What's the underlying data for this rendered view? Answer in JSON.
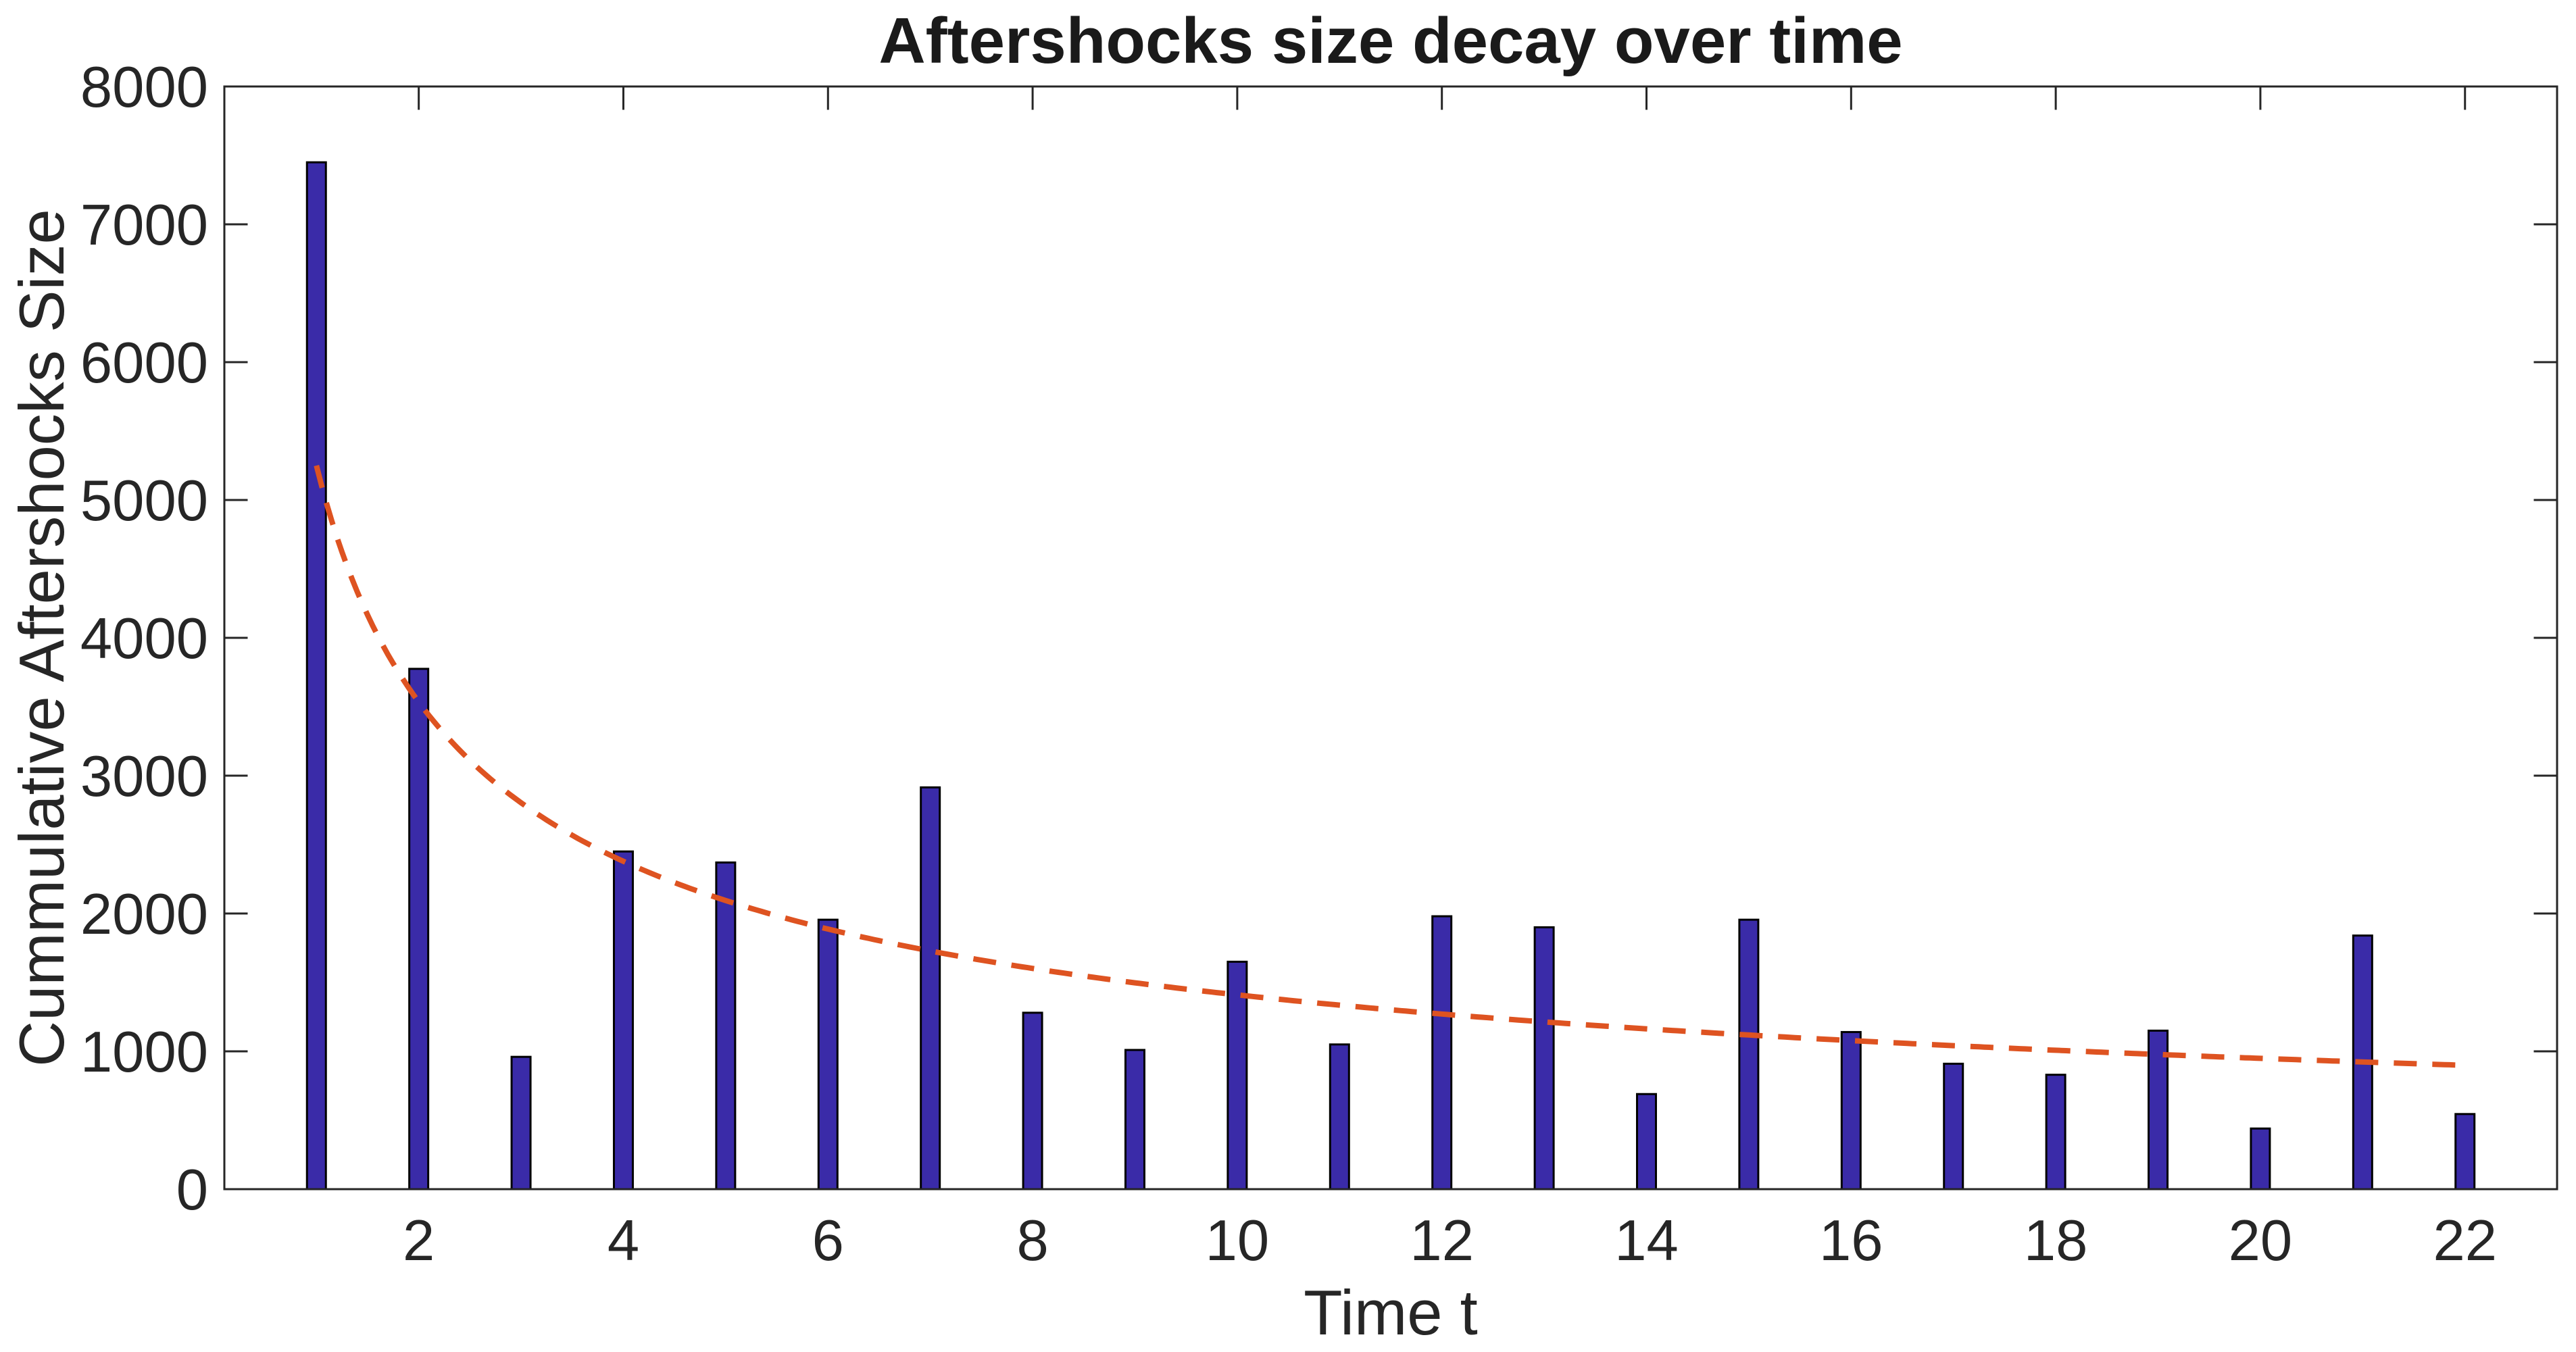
{
  "figure": {
    "title": "Aftershocks size decay over time",
    "xlabel": "Time t",
    "ylabel": "Cummulative Aftershocks Size"
  },
  "chart_data": {
    "type": "bar",
    "title": "Aftershocks size decay over time",
    "xlabel": "Time t",
    "ylabel": "Cummulative Aftershocks Size",
    "x": [
      1,
      2,
      3,
      4,
      5,
      6,
      7,
      8,
      9,
      10,
      11,
      12,
      13,
      14,
      15,
      16,
      17,
      18,
      19,
      20,
      21,
      22
    ],
    "values": [
      7450,
      3775,
      960,
      2450,
      2370,
      1955,
      2915,
      1280,
      1010,
      1650,
      1050,
      1980,
      1900,
      690,
      1955,
      1140,
      910,
      830,
      1150,
      440,
      1840,
      545
    ],
    "series": [
      {
        "name": "cumulative-aftershocks-size-bars",
        "type": "bar",
        "values": [
          7450,
          3775,
          960,
          2450,
          2370,
          1955,
          2915,
          1280,
          1010,
          1650,
          1050,
          1980,
          1900,
          690,
          1955,
          1140,
          910,
          830,
          1150,
          440,
          1840,
          545
        ]
      },
      {
        "name": "decay-fit-curve",
        "type": "line",
        "style": "dashed",
        "formula": "y = 5250 * t^(-0.571)",
        "a": 5250,
        "b": -0.571,
        "t_start": 1,
        "t_end": 22
      }
    ],
    "xlim": [
      0.1,
      22.9
    ],
    "ylim": [
      0,
      8000
    ],
    "x_ticks": [
      2,
      4,
      6,
      8,
      10,
      12,
      14,
      16,
      18,
      20,
      22
    ],
    "y_ticks": [
      0,
      1000,
      2000,
      3000,
      4000,
      5000,
      6000,
      7000,
      8000
    ],
    "grid": false,
    "legend_position": null,
    "colors": {
      "bar_fill": "#3A2BA8",
      "bar_edge": "#000000",
      "fit_line": "#DE5321",
      "axis": "#262626",
      "text": "#1A1A1A"
    }
  }
}
